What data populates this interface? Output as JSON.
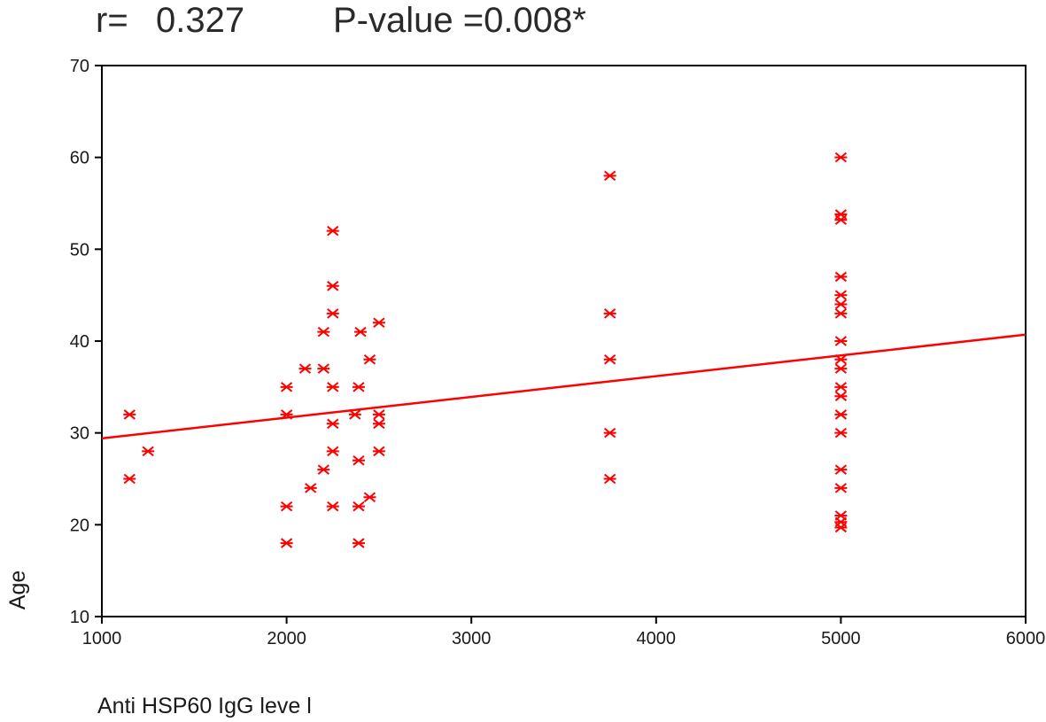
{
  "colors": {
    "marker": "#ff0000",
    "fit_line": "#ff0000",
    "frame": "#000000",
    "text": "#1a1a1a"
  },
  "stats": {
    "r_label": "r=",
    "r_value": "0.327",
    "p_text": "P-value =0.008*"
  },
  "chart_data": {
    "type": "scatter",
    "xlabel": "Anti HSP60 IgG leve l",
    "ylabel": "Age",
    "xlim": [
      1000,
      6000
    ],
    "ylim": [
      10,
      70
    ],
    "x_ticks": [
      1000,
      2000,
      3000,
      4000,
      5000,
      6000
    ],
    "y_ticks": [
      10,
      20,
      30,
      40,
      50,
      60,
      70
    ],
    "x_tick_labels": [
      "1000",
      "2000",
      "3000",
      "4000",
      "5000",
      "6000"
    ],
    "y_tick_labels": [
      "10",
      "20",
      "30",
      "40",
      "50",
      "60",
      "70"
    ],
    "grid": false,
    "series": [
      {
        "marker": "star",
        "points": [
          [
            1150,
            32
          ],
          [
            1150,
            25
          ],
          [
            1250,
            28
          ],
          [
            2000,
            35
          ],
          [
            2000,
            32
          ],
          [
            2000,
            22
          ],
          [
            2000,
            18
          ],
          [
            2100,
            37
          ],
          [
            2130,
            24
          ],
          [
            2200,
            41
          ],
          [
            2200,
            37
          ],
          [
            2200,
            26
          ],
          [
            2250,
            52
          ],
          [
            2250,
            46
          ],
          [
            2250,
            43
          ],
          [
            2250,
            35
          ],
          [
            2250,
            31
          ],
          [
            2250,
            28
          ],
          [
            2250,
            22
          ],
          [
            2370,
            32
          ],
          [
            2390,
            35
          ],
          [
            2390,
            27
          ],
          [
            2390,
            22
          ],
          [
            2390,
            18
          ],
          [
            2400,
            41
          ],
          [
            2450,
            38
          ],
          [
            2450,
            23
          ],
          [
            2500,
            42
          ],
          [
            2500,
            32
          ],
          [
            2500,
            31
          ],
          [
            2500,
            28
          ],
          [
            3750,
            58
          ],
          [
            3750,
            43
          ],
          [
            3750,
            38
          ],
          [
            3750,
            30
          ],
          [
            3750,
            25
          ],
          [
            5000,
            60
          ],
          [
            5000,
            53.8
          ],
          [
            5000,
            53.2
          ],
          [
            5000,
            47
          ],
          [
            5000,
            45
          ],
          [
            5000,
            44
          ],
          [
            5000,
            43
          ],
          [
            5000,
            40
          ],
          [
            5000,
            38
          ],
          [
            5000,
            37
          ],
          [
            5000,
            35
          ],
          [
            5000,
            34
          ],
          [
            5000,
            32
          ],
          [
            5000,
            30
          ],
          [
            5000,
            26
          ],
          [
            5000,
            24
          ],
          [
            5000,
            21
          ],
          [
            5000,
            20.3
          ],
          [
            5000,
            19.7
          ]
        ]
      }
    ],
    "fit_line": {
      "x": [
        1000,
        6000
      ],
      "y": [
        29.4,
        40.7
      ]
    }
  }
}
